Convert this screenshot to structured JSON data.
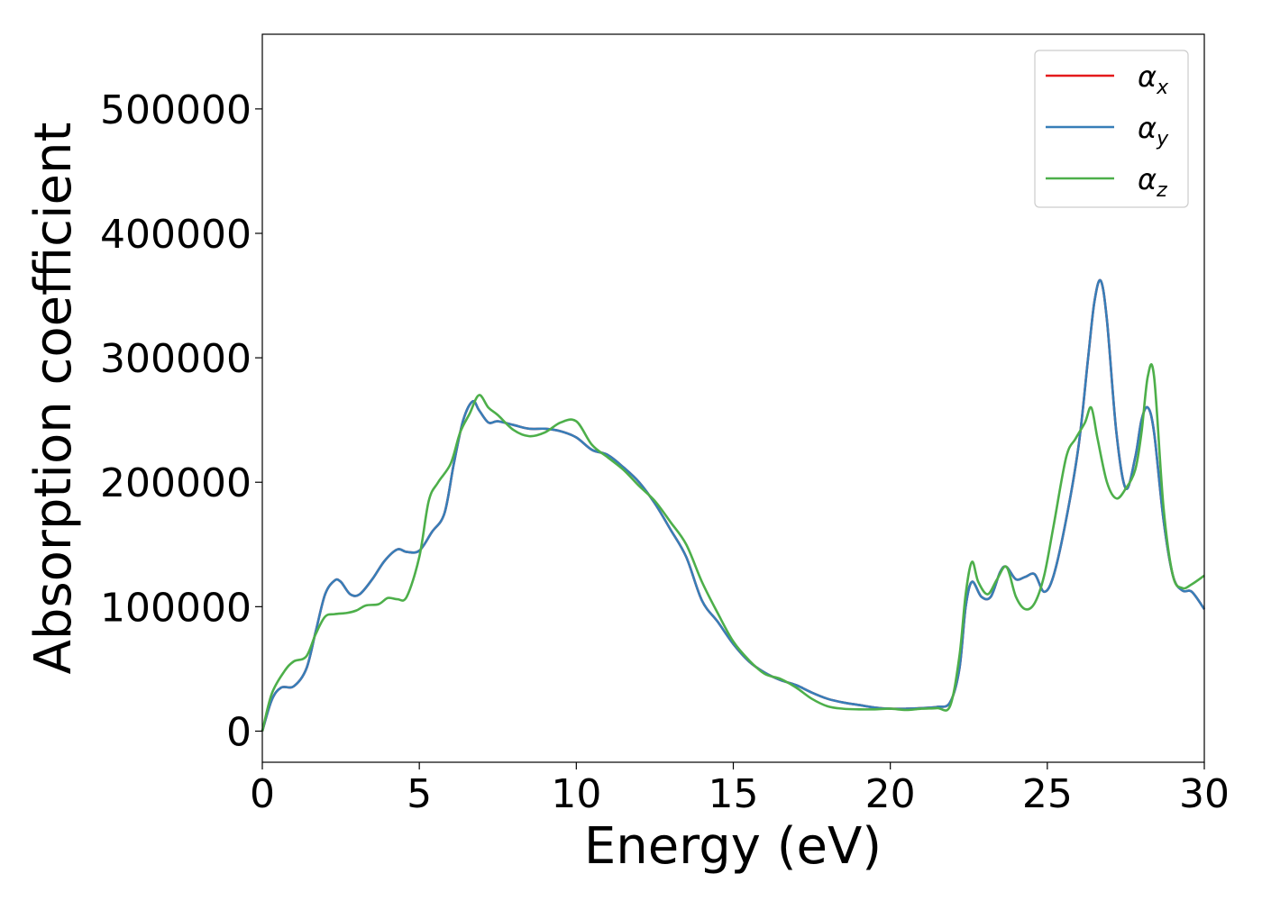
{
  "chart_data": {
    "type": "line",
    "title": "",
    "xlabel": "Energy (eV)",
    "ylabel": "Absorption coefficient",
    "xlim": [
      0,
      30
    ],
    "ylim": [
      -25000,
      560000
    ],
    "xticks": [
      0,
      5,
      10,
      15,
      20,
      25,
      30
    ],
    "yticks": [
      0,
      100000,
      200000,
      300000,
      400000,
      500000
    ],
    "grid": false,
    "legend_position": "top-right",
    "series": [
      {
        "name": "α_x",
        "name_base": "α",
        "name_sub": "x",
        "color": "#e41a1c",
        "x": [
          0,
          0.3,
          0.6,
          1.0,
          1.4,
          1.7,
          2.0,
          2.3,
          2.5,
          2.8,
          3.1,
          3.5,
          3.9,
          4.3,
          4.6,
          5.0,
          5.4,
          5.8,
          6.1,
          6.4,
          6.7,
          6.9,
          7.2,
          7.5,
          8.0,
          8.5,
          9.0,
          9.5,
          10.0,
          10.5,
          11.0,
          11.5,
          12.0,
          12.5,
          13.0,
          13.5,
          14.0,
          14.5,
          15.0,
          15.5,
          16.0,
          16.5,
          17.0,
          17.5,
          18.0,
          18.5,
          19.0,
          19.5,
          20.0,
          20.5,
          21.0,
          21.5,
          21.9,
          22.2,
          22.4,
          22.6,
          22.9,
          23.2,
          23.5,
          23.7,
          24.0,
          24.3,
          24.6,
          24.9,
          25.2,
          25.6,
          26.0,
          26.3,
          26.5,
          26.7,
          26.9,
          27.2,
          27.5,
          27.8,
          28.0,
          28.2,
          28.4,
          28.7,
          29.0,
          29.3,
          29.6,
          30.0
        ],
        "y": [
          0,
          25000,
          35000,
          36000,
          50000,
          80000,
          110000,
          121000,
          120000,
          110000,
          110000,
          122000,
          137000,
          146000,
          144000,
          145000,
          160000,
          175000,
          215000,
          250000,
          265000,
          258000,
          248000,
          249000,
          246000,
          243000,
          243000,
          241000,
          236000,
          226000,
          222000,
          212000,
          200000,
          183000,
          162000,
          140000,
          105000,
          88000,
          70000,
          56000,
          47000,
          41000,
          37000,
          31000,
          26000,
          23000,
          21000,
          19000,
          18000,
          18000,
          18500,
          19500,
          23000,
          50000,
          100000,
          120000,
          108000,
          108000,
          128000,
          132000,
          122000,
          124000,
          126000,
          112000,
          125000,
          170000,
          230000,
          300000,
          345000,
          362000,
          330000,
          240000,
          195000,
          220000,
          250000,
          260000,
          240000,
          170000,
          125000,
          113000,
          112000,
          98000
        ]
      },
      {
        "name": "α_y",
        "name_base": "α",
        "name_sub": "y",
        "color": "#377eb8",
        "x": [
          0,
          0.3,
          0.6,
          1.0,
          1.4,
          1.7,
          2.0,
          2.3,
          2.5,
          2.8,
          3.1,
          3.5,
          3.9,
          4.3,
          4.6,
          5.0,
          5.4,
          5.8,
          6.1,
          6.4,
          6.7,
          6.9,
          7.2,
          7.5,
          8.0,
          8.5,
          9.0,
          9.5,
          10.0,
          10.5,
          11.0,
          11.5,
          12.0,
          12.5,
          13.0,
          13.5,
          14.0,
          14.5,
          15.0,
          15.5,
          16.0,
          16.5,
          17.0,
          17.5,
          18.0,
          18.5,
          19.0,
          19.5,
          20.0,
          20.5,
          21.0,
          21.5,
          21.9,
          22.2,
          22.4,
          22.6,
          22.9,
          23.2,
          23.5,
          23.7,
          24.0,
          24.3,
          24.6,
          24.9,
          25.2,
          25.6,
          26.0,
          26.3,
          26.5,
          26.7,
          26.9,
          27.2,
          27.5,
          27.8,
          28.0,
          28.2,
          28.4,
          28.7,
          29.0,
          29.3,
          29.6,
          30.0
        ],
        "y": [
          0,
          25000,
          35000,
          36000,
          50000,
          80000,
          110000,
          121000,
          120000,
          110000,
          110000,
          122000,
          137000,
          146000,
          144000,
          145000,
          160000,
          175000,
          215000,
          250000,
          265000,
          258000,
          248000,
          249000,
          246000,
          243000,
          243000,
          241000,
          236000,
          226000,
          222000,
          212000,
          200000,
          183000,
          162000,
          140000,
          105000,
          88000,
          70000,
          56000,
          47000,
          41000,
          37000,
          31000,
          26000,
          23000,
          21000,
          19000,
          18000,
          18000,
          18500,
          19500,
          23000,
          50000,
          100000,
          120000,
          108000,
          108000,
          128000,
          132000,
          122000,
          124000,
          126000,
          112000,
          125000,
          170000,
          230000,
          300000,
          345000,
          362000,
          330000,
          240000,
          195000,
          220000,
          250000,
          260000,
          240000,
          170000,
          125000,
          113000,
          112000,
          98000
        ]
      },
      {
        "name": "α_z",
        "name_base": "α",
        "name_sub": "z",
        "color": "#4daf4a",
        "x": [
          0,
          0.3,
          0.7,
          1.0,
          1.4,
          1.7,
          2.0,
          2.3,
          2.7,
          3.0,
          3.3,
          3.7,
          4.0,
          4.3,
          4.6,
          5.0,
          5.3,
          5.6,
          6.0,
          6.3,
          6.6,
          6.9,
          7.2,
          7.5,
          8.0,
          8.5,
          9.0,
          9.5,
          10.0,
          10.5,
          11.0,
          11.5,
          12.0,
          12.5,
          13.0,
          13.5,
          14.0,
          14.5,
          15.0,
          15.5,
          16.0,
          16.5,
          17.0,
          17.5,
          18.0,
          18.5,
          19.0,
          19.5,
          20.0,
          20.5,
          21.0,
          21.5,
          21.9,
          22.2,
          22.4,
          22.6,
          22.8,
          23.1,
          23.4,
          23.7,
          24.0,
          24.3,
          24.6,
          24.9,
          25.2,
          25.6,
          25.9,
          26.2,
          26.4,
          26.6,
          26.9,
          27.2,
          27.5,
          27.8,
          28.0,
          28.2,
          28.4,
          28.7,
          29.0,
          29.3,
          29.6,
          30.0
        ],
        "y": [
          0,
          30000,
          48000,
          56000,
          60000,
          78000,
          92000,
          94000,
          95000,
          97000,
          101000,
          102000,
          107000,
          106000,
          108000,
          140000,
          185000,
          200000,
          215000,
          240000,
          255000,
          270000,
          260000,
          254000,
          242000,
          237000,
          240000,
          248000,
          249000,
          230000,
          220000,
          210000,
          197000,
          185000,
          168000,
          150000,
          120000,
          95000,
          72000,
          57000,
          46000,
          42000,
          35000,
          26000,
          20000,
          18000,
          17500,
          17500,
          18000,
          17000,
          18000,
          18500,
          20000,
          60000,
          110000,
          136000,
          120000,
          110000,
          122000,
          132000,
          108000,
          98000,
          103000,
          125000,
          165000,
          220000,
          235000,
          248000,
          260000,
          235000,
          200000,
          187000,
          195000,
          210000,
          240000,
          285000,
          285000,
          180000,
          125000,
          115000,
          118000,
          125000
        ]
      }
    ]
  }
}
